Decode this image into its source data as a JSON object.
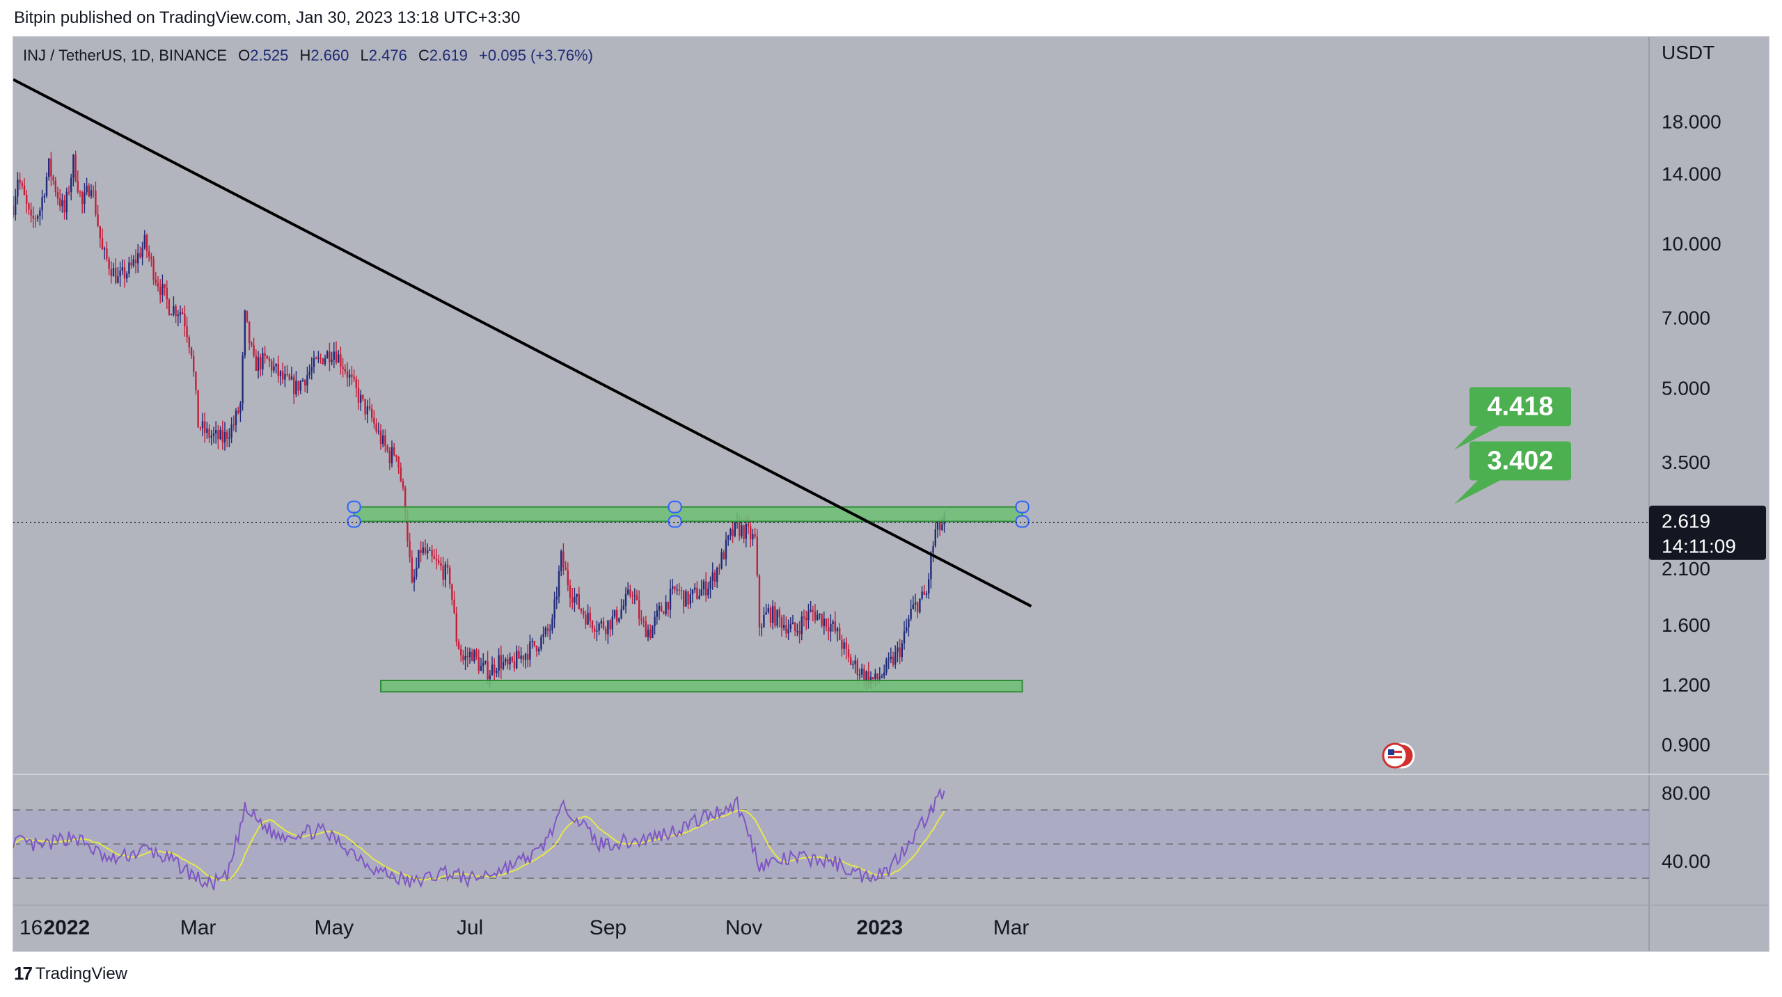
{
  "header": {
    "published_text": "Bitpin published on TradingView.com, Jan 30, 2023 13:18 UTC+3:30"
  },
  "footer": {
    "brand": "TradingView",
    "logo_icon": "tradingview-logo-icon"
  },
  "legend": {
    "symbol": "INJ / TetherUS, 1D, BINANCE",
    "o_label": "O",
    "o_value": "2.525",
    "h_label": "H",
    "h_value": "2.660",
    "l_label": "L",
    "l_value": "2.476",
    "c_label": "C",
    "c_value": "2.619",
    "change": "+0.095 (+3.76%)"
  },
  "price_scale": {
    "currency": "USDT",
    "current_price": "2.619",
    "countdown": "14:11:09",
    "rsi_ticks": [
      "80.00",
      "40.00"
    ]
  },
  "targets": [
    {
      "label": "4.418",
      "value": 4.418
    },
    {
      "label": "3.402",
      "value": 3.402
    }
  ],
  "colors": {
    "background": "#b2b5be",
    "scale_background": "#b2b5be",
    "candle_up": "#1f2a78",
    "candle_down": "#c41e3a",
    "zone_fill": "#6dbf73",
    "zone_border": "#2e8b3a",
    "label_green": "#4caf50",
    "trendline": "#000000",
    "rsi_line": "#7e57c2",
    "rsi_ma": "#e6e84a",
    "rsi_band": "#a8a3c8"
  },
  "chart_data": {
    "type": "candlestick",
    "scale": "log",
    "ylim": [
      0.78,
      27
    ],
    "x_tick_labels": [
      {
        "label": "16",
        "date": "2021-12-16"
      },
      {
        "label": "2022",
        "date": "2022-01-01",
        "bold": true
      },
      {
        "label": "Mar",
        "date": "2022-03-01"
      },
      {
        "label": "May",
        "date": "2022-05-01"
      },
      {
        "label": "Jul",
        "date": "2022-07-01"
      },
      {
        "label": "Sep",
        "date": "2022-09-01"
      },
      {
        "label": "Nov",
        "date": "2022-11-01"
      },
      {
        "label": "2023",
        "date": "2023-01-01",
        "bold": true
      },
      {
        "label": "Mar",
        "date": "2023-03-01"
      }
    ],
    "y_ticks": [
      "18.000",
      "14.000",
      "10.000",
      "7.000",
      "5.000",
      "3.500",
      "2.100",
      "1.600",
      "1.200",
      "0.900"
    ],
    "price_path": [
      [
        "2021-12-08",
        12.0
      ],
      [
        "2021-12-10",
        13.8
      ],
      [
        "2021-12-13",
        12.4
      ],
      [
        "2021-12-16",
        11.0
      ],
      [
        "2021-12-20",
        11.8
      ],
      [
        "2021-12-24",
        14.5
      ],
      [
        "2021-12-28",
        12.6
      ],
      [
        "2021-12-31",
        11.6
      ],
      [
        "2022-01-04",
        14.8
      ],
      [
        "2022-01-08",
        12.0
      ],
      [
        "2022-01-12",
        13.5
      ],
      [
        "2022-01-17",
        9.6
      ],
      [
        "2022-01-24",
        8.4
      ],
      [
        "2022-01-30",
        8.9
      ],
      [
        "2022-02-05",
        10.0
      ],
      [
        "2022-02-10",
        8.5
      ],
      [
        "2022-02-16",
        7.4
      ],
      [
        "2022-02-22",
        7.2
      ],
      [
        "2022-02-26",
        6.0
      ],
      [
        "2022-03-01",
        4.2
      ],
      [
        "2022-03-05",
        4.0
      ],
      [
        "2022-03-12",
        3.9
      ],
      [
        "2022-03-17",
        4.2
      ],
      [
        "2022-03-20",
        4.6
      ],
      [
        "2022-03-22",
        7.0
      ],
      [
        "2022-03-26",
        5.6
      ],
      [
        "2022-04-01",
        5.7
      ],
      [
        "2022-04-08",
        5.2
      ],
      [
        "2022-04-14",
        5.0
      ],
      [
        "2022-04-20",
        5.4
      ],
      [
        "2022-04-26",
        5.8
      ],
      [
        "2022-05-01",
        6.0
      ],
      [
        "2022-05-06",
        5.5
      ],
      [
        "2022-05-10",
        5.0
      ],
      [
        "2022-05-14",
        4.6
      ],
      [
        "2022-05-18",
        4.3
      ],
      [
        "2022-05-22",
        3.9
      ],
      [
        "2022-05-26",
        3.6
      ],
      [
        "2022-05-29",
        3.7
      ],
      [
        "2022-06-02",
        2.8
      ],
      [
        "2022-06-05",
        1.9
      ],
      [
        "2022-06-09",
        2.3
      ],
      [
        "2022-06-13",
        2.2
      ],
      [
        "2022-06-18",
        2.1
      ],
      [
        "2022-06-22",
        2.0
      ],
      [
        "2022-06-25",
        1.5
      ],
      [
        "2022-06-28",
        1.35
      ],
      [
        "2022-07-02",
        1.4
      ],
      [
        "2022-07-06",
        1.3
      ],
      [
        "2022-07-10",
        1.28
      ],
      [
        "2022-07-14",
        1.35
      ],
      [
        "2022-07-18",
        1.3
      ],
      [
        "2022-07-22",
        1.35
      ],
      [
        "2022-07-26",
        1.4
      ],
      [
        "2022-07-30",
        1.45
      ],
      [
        "2022-08-03",
        1.5
      ],
      [
        "2022-08-07",
        1.6
      ],
      [
        "2022-08-11",
        2.2
      ],
      [
        "2022-08-15",
        1.9
      ],
      [
        "2022-08-19",
        1.75
      ],
      [
        "2022-08-23",
        1.65
      ],
      [
        "2022-08-27",
        1.6
      ],
      [
        "2022-08-31",
        1.6
      ],
      [
        "2022-09-04",
        1.65
      ],
      [
        "2022-09-08",
        1.75
      ],
      [
        "2022-09-12",
        1.9
      ],
      [
        "2022-09-16",
        1.6
      ],
      [
        "2022-09-20",
        1.55
      ],
      [
        "2022-09-24",
        1.7
      ],
      [
        "2022-09-28",
        1.8
      ],
      [
        "2022-10-02",
        1.9
      ],
      [
        "2022-10-06",
        1.8
      ],
      [
        "2022-10-10",
        1.85
      ],
      [
        "2022-10-14",
        1.9
      ],
      [
        "2022-10-18",
        2.0
      ],
      [
        "2022-10-22",
        2.2
      ],
      [
        "2022-10-26",
        2.45
      ],
      [
        "2022-10-29",
        2.55
      ],
      [
        "2022-11-02",
        2.5
      ],
      [
        "2022-11-06",
        2.4
      ],
      [
        "2022-11-08",
        1.6
      ],
      [
        "2022-11-12",
        1.7
      ],
      [
        "2022-11-16",
        1.65
      ],
      [
        "2022-11-20",
        1.6
      ],
      [
        "2022-11-24",
        1.55
      ],
      [
        "2022-11-28",
        1.65
      ],
      [
        "2022-12-02",
        1.7
      ],
      [
        "2022-12-06",
        1.65
      ],
      [
        "2022-12-10",
        1.6
      ],
      [
        "2022-12-14",
        1.5
      ],
      [
        "2022-12-18",
        1.35
      ],
      [
        "2022-12-22",
        1.3
      ],
      [
        "2022-12-26",
        1.25
      ],
      [
        "2022-12-30",
        1.22
      ],
      [
        "2023-01-03",
        1.28
      ],
      [
        "2023-01-07",
        1.35
      ],
      [
        "2023-01-11",
        1.45
      ],
      [
        "2023-01-15",
        1.7
      ],
      [
        "2023-01-19",
        1.8
      ],
      [
        "2023-01-22",
        1.85
      ],
      [
        "2023-01-24",
        2.2
      ],
      [
        "2023-01-26",
        2.5
      ],
      [
        "2023-01-28",
        2.55
      ],
      [
        "2023-01-30",
        2.619
      ]
    ],
    "trendline": {
      "start": [
        "2021-12-08",
        22.0
      ],
      "end": [
        "2023-03-10",
        1.75
      ]
    },
    "resistance_zone": {
      "start": "2022-05-10",
      "end": "2023-03-06",
      "top": 2.82,
      "bottom": 2.63
    },
    "support_zone": {
      "start": "2022-05-22",
      "end": "2023-03-06",
      "top": 1.225,
      "bottom": 1.16
    },
    "rsi": {
      "ylim": [
        15,
        90
      ],
      "levels": [
        70,
        50,
        30
      ],
      "path": [
        [
          "2021-12-08",
          52
        ],
        [
          "2021-12-20",
          48
        ],
        [
          "2022-01-04",
          55
        ],
        [
          "2022-01-20",
          40
        ],
        [
          "2022-02-06",
          47
        ],
        [
          "2022-02-20",
          38
        ],
        [
          "2022-03-05",
          26
        ],
        [
          "2022-03-14",
          30
        ],
        [
          "2022-03-22",
          70
        ],
        [
          "2022-04-05",
          55
        ],
        [
          "2022-04-25",
          58
        ],
        [
          "2022-05-10",
          45
        ],
        [
          "2022-05-20",
          35
        ],
        [
          "2022-06-05",
          27
        ],
        [
          "2022-06-20",
          34
        ],
        [
          "2022-07-01",
          29
        ],
        [
          "2022-07-15",
          35
        ],
        [
          "2022-08-01",
          45
        ],
        [
          "2022-08-13",
          73
        ],
        [
          "2022-08-28",
          50
        ],
        [
          "2022-09-15",
          52
        ],
        [
          "2022-10-01",
          58
        ],
        [
          "2022-10-29",
          74
        ],
        [
          "2022-11-08",
          38
        ],
        [
          "2022-11-25",
          42
        ],
        [
          "2022-12-10",
          40
        ],
        [
          "2022-12-25",
          31
        ],
        [
          "2023-01-05",
          35
        ],
        [
          "2023-01-20",
          62
        ],
        [
          "2023-01-30",
          82
        ]
      ]
    }
  }
}
